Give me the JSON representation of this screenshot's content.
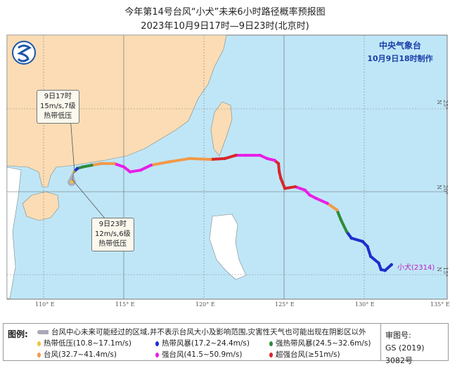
{
  "title": "今年第14号台风“小犬”未来6小时路径概率预报图",
  "subtitle": "2023年10月9日17时—9日23时(北京时)",
  "agency": {
    "name": "中央气象台",
    "made": "10月9日18时制作"
  },
  "map": {
    "lon_ticks": [
      "110° E",
      "115° E",
      "120° E",
      "125° E",
      "130° E",
      "135° E"
    ],
    "lat_ticks": [
      "25° N",
      "20° N",
      "15° N"
    ],
    "colors": {
      "sea": "#bfe6f7",
      "land_china": "#fbdcb4",
      "land_other": "#ffffff",
      "cone": "#a9a9b8"
    }
  },
  "callouts": [
    {
      "time": "9日17时",
      "wind": "15m/s,7级",
      "level": "热带低压"
    },
    {
      "time": "9日23时",
      "wind": "12m/s,6级",
      "level": "热带低压"
    }
  ],
  "storm_label": "小犬(2314)",
  "categories": {
    "TD": "#f2c33c",
    "TS": "#1c2ecc",
    "STS": "#2e8b3a",
    "TY": "#f2994a",
    "STY": "#e81ee8",
    "SuperTY": "#d8262a"
  },
  "track": [
    {
      "lon": 131.7,
      "lat": 15.6,
      "cat": "TS"
    },
    {
      "lon": 131.3,
      "lat": 15.25,
      "cat": "TS"
    },
    {
      "lon": 131.05,
      "lat": 15.3,
      "cat": "TS"
    },
    {
      "lon": 130.9,
      "lat": 15.7,
      "cat": "TS"
    },
    {
      "lon": 130.4,
      "lat": 16.1,
      "cat": "TS"
    },
    {
      "lon": 130.2,
      "lat": 16.7,
      "cat": "TS"
    },
    {
      "lon": 129.9,
      "lat": 17.0,
      "cat": "TS"
    },
    {
      "lon": 129.2,
      "lat": 17.2,
      "cat": "TS"
    },
    {
      "lon": 128.9,
      "lat": 17.6,
      "cat": "STS"
    },
    {
      "lon": 128.55,
      "lat": 18.3,
      "cat": "STS"
    },
    {
      "lon": 128.3,
      "lat": 18.9,
      "cat": "TY"
    },
    {
      "lon": 127.7,
      "lat": 19.3,
      "cat": "STY"
    },
    {
      "lon": 127.0,
      "lat": 19.6,
      "cat": "STY"
    },
    {
      "lon": 126.6,
      "lat": 19.8,
      "cat": "STY"
    },
    {
      "lon": 126.3,
      "lat": 20.1,
      "cat": "STY"
    },
    {
      "lon": 125.7,
      "lat": 20.3,
      "cat": "SuperTY"
    },
    {
      "lon": 125.05,
      "lat": 20.2,
      "cat": "SuperTY"
    },
    {
      "lon": 124.8,
      "lat": 20.8,
      "cat": "SuperTY"
    },
    {
      "lon": 124.7,
      "lat": 21.2,
      "cat": "SuperTY"
    },
    {
      "lon": 124.65,
      "lat": 21.7,
      "cat": "SuperTY"
    },
    {
      "lon": 124.4,
      "lat": 21.9,
      "cat": "STY"
    },
    {
      "lon": 123.95,
      "lat": 22.0,
      "cat": "STY"
    },
    {
      "lon": 123.5,
      "lat": 22.2,
      "cat": "STY"
    },
    {
      "lon": 122.6,
      "lat": 22.2,
      "cat": "STY"
    },
    {
      "lon": 122.0,
      "lat": 22.2,
      "cat": "SuperTY"
    },
    {
      "lon": 121.3,
      "lat": 22.0,
      "cat": "SuperTY"
    },
    {
      "lon": 120.4,
      "lat": 21.95,
      "cat": "TY"
    },
    {
      "lon": 119.1,
      "lat": 22.0,
      "cat": "TY"
    },
    {
      "lon": 117.8,
      "lat": 21.8,
      "cat": "TY"
    },
    {
      "lon": 116.7,
      "lat": 21.6,
      "cat": "STY"
    },
    {
      "lon": 116.05,
      "lat": 21.3,
      "cat": "STY"
    },
    {
      "lon": 115.4,
      "lat": 21.2,
      "cat": "STY"
    },
    {
      "lon": 115.0,
      "lat": 21.5,
      "cat": "STY"
    },
    {
      "lon": 114.4,
      "lat": 21.7,
      "cat": "TY"
    },
    {
      "lon": 113.6,
      "lat": 21.7,
      "cat": "TY"
    },
    {
      "lon": 113.0,
      "lat": 21.6,
      "cat": "STS"
    },
    {
      "lon": 112.45,
      "lat": 21.5,
      "cat": "STS"
    },
    {
      "lon": 112.1,
      "lat": 21.4,
      "cat": "TS"
    },
    {
      "lon": 111.9,
      "lat": 21.2,
      "cat": "TD"
    }
  ],
  "forecast_point": {
    "lon": 111.75,
    "lat": 20.6,
    "cat": "TD"
  },
  "legend": {
    "label": "图例:",
    "cone_text": "台风中心未来可能经过的区域,并不表示台风大小及影响范围,灾害性天气也可能出现在阴影区以外",
    "items": [
      {
        "cat": "TD",
        "text": "热带低压(10.8~17.1m/s)"
      },
      {
        "cat": "TS",
        "text": "热带风暴(17.2~24.4m/s)"
      },
      {
        "cat": "STS",
        "text": "强热带风暴(24.5~32.6m/s)"
      },
      {
        "cat": "TY",
        "text": "台风(32.7~41.4m/s)"
      },
      {
        "cat": "STY",
        "text": "强台风(41.5~50.9m/s)"
      },
      {
        "cat": "SuperTY",
        "text": "超强台风(≥51m/s)"
      }
    ],
    "review_label": "审图号:",
    "review_no": "GS (2019) 3082号"
  }
}
